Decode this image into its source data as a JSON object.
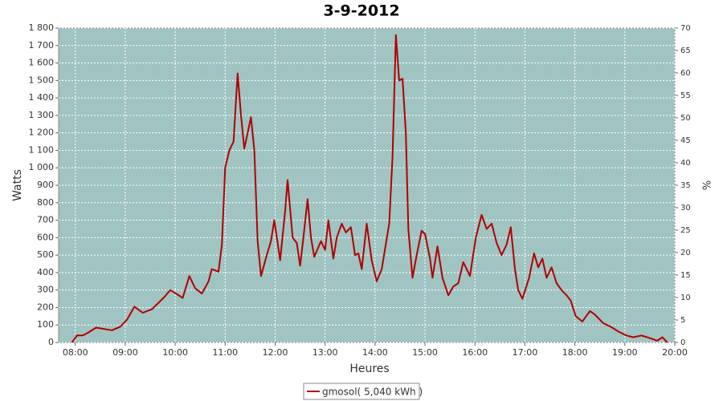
{
  "chart_data": {
    "type": "line",
    "title": "3-9-2012",
    "y_label": "Watts",
    "y2_label": "%",
    "x_label": "Heures",
    "x": [
      "07:56",
      "08:02",
      "08:09",
      "08:15",
      "08:25",
      "08:44",
      "08:54",
      "09:02",
      "09:11",
      "09:21",
      "09:32",
      "09:47",
      "09:54",
      "10:01",
      "10:09",
      "10:17",
      "10:24",
      "10:32",
      "10:40",
      "10:44",
      "10:52",
      "10:56",
      "11:00",
      "11:05",
      "11:10",
      "11:15",
      "11:19",
      "11:23",
      "11:27",
      "11:31",
      "11:35",
      "11:39",
      "11:43",
      "11:50",
      "11:55",
      "11:59",
      "12:04",
      "12:06",
      "12:12",
      "12:15",
      "12:21",
      "12:26",
      "12:30",
      "12:34",
      "12:39",
      "12:43",
      "12:47",
      "12:55",
      "13:00",
      "13:04",
      "13:10",
      "13:14",
      "13:20",
      "13:25",
      "13:31",
      "13:36",
      "13:40",
      "13:44",
      "13:50",
      "13:56",
      "14:02",
      "14:08",
      "14:17",
      "14:21",
      "14:25",
      "14:29",
      "14:33",
      "14:37",
      "14:40",
      "14:45",
      "14:50",
      "14:56",
      "15:00",
      "15:06",
      "15:09",
      "15:15",
      "15:21",
      "15:28",
      "15:34",
      "15:40",
      "15:46",
      "15:54",
      "16:01",
      "16:08",
      "16:14",
      "16:20",
      "16:26",
      "16:32",
      "16:38",
      "16:43",
      "16:48",
      "16:52",
      "16:57",
      "17:05",
      "17:11",
      "17:16",
      "17:21",
      "17:26",
      "17:32",
      "17:38",
      "17:44",
      "17:50",
      "17:55",
      "18:01",
      "18:09",
      "18:18",
      "18:24",
      "18:34",
      "18:43",
      "18:53",
      "19:02",
      "19:10",
      "19:20",
      "19:30",
      "19:39",
      "19:45",
      "19:51"
    ],
    "series": [
      {
        "name": "gmosol( 5,040 kWh )",
        "color": "#b00000",
        "values": [
          0,
          40,
          40,
          55,
          85,
          70,
          90,
          130,
          205,
          170,
          190,
          260,
          300,
          280,
          255,
          380,
          310,
          280,
          350,
          420,
          405,
          560,
          1000,
          1100,
          1150,
          1540,
          1300,
          1110,
          1200,
          1290,
          1100,
          580,
          380,
          500,
          580,
          700,
          540,
          470,
          750,
          930,
          600,
          570,
          440,
          600,
          820,
          600,
          490,
          580,
          530,
          700,
          480,
          600,
          680,
          630,
          660,
          500,
          510,
          420,
          680,
          470,
          350,
          420,
          680,
          1060,
          1760,
          1500,
          1510,
          1200,
          650,
          370,
          500,
          640,
          620,
          480,
          370,
          550,
          370,
          270,
          320,
          340,
          460,
          380,
          600,
          730,
          650,
          680,
          570,
          500,
          560,
          660,
          420,
          300,
          250,
          370,
          510,
          430,
          480,
          370,
          430,
          340,
          300,
          270,
          240,
          150,
          120,
          180,
          160,
          110,
          90,
          60,
          40,
          30,
          40,
          25,
          10,
          30,
          0
        ]
      }
    ],
    "xlim": [
      "07:40",
      "20:00"
    ],
    "xticks": [
      "08:00",
      "09:00",
      "10:00",
      "11:00",
      "12:00",
      "13:00",
      "14:00",
      "15:00",
      "16:00",
      "17:00",
      "18:00",
      "19:00",
      "20:00"
    ],
    "ylim": [
      0,
      1800
    ],
    "yticks": [
      0,
      100,
      200,
      300,
      400,
      500,
      600,
      700,
      800,
      900,
      {
        "value": 1000,
        "label": "1 000"
      },
      {
        "value": 1100,
        "label": "1 100"
      },
      {
        "value": 1200,
        "label": "1 200"
      },
      {
        "value": 1300,
        "label": "1 300"
      },
      {
        "value": 1400,
        "label": "1 400"
      },
      {
        "value": 1500,
        "label": "1 500"
      },
      {
        "value": 1600,
        "label": "1 600"
      },
      {
        "value": 1700,
        "label": "1 700"
      },
      {
        "value": 1800,
        "label": "1 800"
      }
    ],
    "y2lim": [
      0,
      70
    ],
    "y2ticks": [
      0,
      5,
      10,
      15,
      20,
      25,
      30,
      35,
      40,
      45,
      50,
      55,
      60,
      65,
      70
    ],
    "grid": true,
    "plot_background": "#a0c4c2",
    "legend": "bottom"
  }
}
